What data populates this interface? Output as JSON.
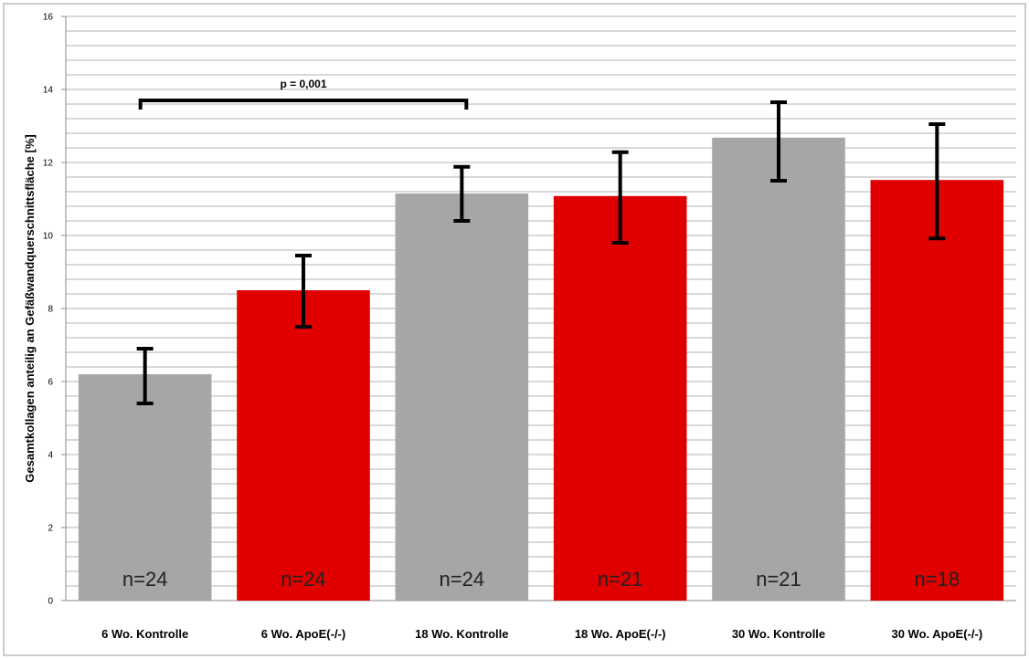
{
  "chart_data": {
    "type": "bar",
    "ylabel": "Gesamtkollagen anteilig an Gefäßwandquerschnittsfläche  [%]",
    "ylim": [
      0,
      16
    ],
    "yticks": [
      0,
      2,
      4,
      6,
      8,
      10,
      12,
      14,
      16
    ],
    "minor_grid_step": 0.4,
    "grid": true,
    "categories": [
      "6 Wo. Kontrolle",
      "6 Wo. ApoE(-/-)",
      "18 Wo. Kontrolle",
      "18 Wo. ApoE(-/-)",
      "30 Wo. Kontrolle",
      "30 Wo. ApoE(-/-)"
    ],
    "values": [
      6.2,
      8.5,
      11.15,
      11.08,
      12.68,
      11.52
    ],
    "error_low": [
      5.4,
      7.5,
      10.4,
      9.8,
      11.5,
      9.92
    ],
    "error_high": [
      6.9,
      9.45,
      11.88,
      12.28,
      13.65,
      13.05
    ],
    "sample_labels": [
      "n=24",
      "n=24",
      "n=24",
      "n=21",
      "n=21",
      "n=18"
    ],
    "colors": [
      "#a6a6a6",
      "#e00000",
      "#a6a6a6",
      "#e00000",
      "#a6a6a6",
      "#e00000"
    ],
    "annotation": {
      "text": "p = 0,001",
      "from_category": 0,
      "to_category": 2,
      "y": 13.7
    }
  }
}
